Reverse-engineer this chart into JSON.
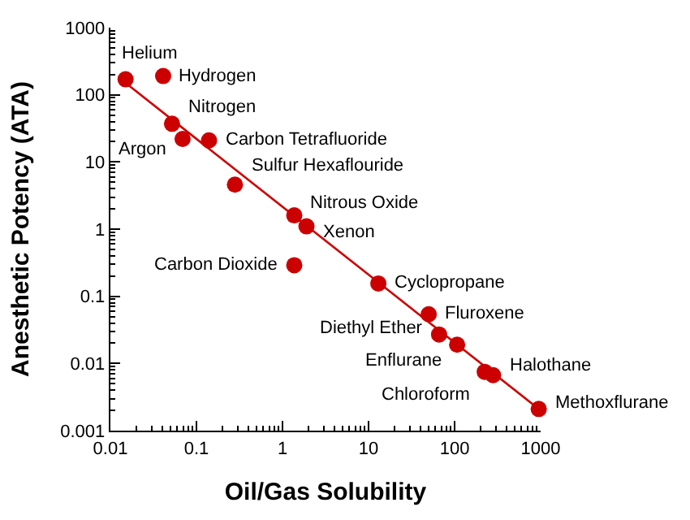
{
  "chart_data": {
    "type": "scatter",
    "xlabel": "Oil/Gas Solubility",
    "ylabel": "Anesthetic Potency (ATA)",
    "log": "xy",
    "marker": "circle",
    "xlim": [
      0.01,
      1000
    ],
    "xticks": [
      0.01,
      0.1,
      1,
      10,
      100,
      1000
    ],
    "ylim": [
      0.001,
      1000
    ],
    "yticks": [
      0.001,
      0.01,
      0.1,
      1,
      10,
      100,
      1000
    ],
    "series": [
      {
        "color": "#cc0000",
        "x": [
          0.015,
          0.041,
          0.052,
          0.069,
          0.14,
          0.28,
          1.37,
          1.9,
          1.37,
          13,
          50,
          66,
          107,
          224,
          280,
          950
        ],
        "values": [
          170,
          190,
          37,
          22,
          21,
          4.6,
          1.6,
          1.1,
          0.29,
          0.155,
          0.054,
          0.027,
          0.019,
          0.0075,
          0.0067,
          0.0021
        ]
      },
      {
        "type": "line",
        "color": "#cc0000",
        "line_style": "solid",
        "marker": "none",
        "x": [
          0.015,
          1000
        ],
        "values": [
          150,
          0.002
        ]
      }
    ],
    "annotations": [
      {
        "text": "Helium",
        "x": 0.015,
        "y": 170
      },
      {
        "text": "Hydrogen",
        "x": 0.041,
        "y": 190
      },
      {
        "text": "Nitrogen",
        "x": 0.052,
        "y": 37
      },
      {
        "text": "Argon",
        "x": 0.069,
        "y": 22
      },
      {
        "text": "Carbon Tetrafluoride",
        "x": 0.14,
        "y": 21
      },
      {
        "text": "Sulfur Hexaflouride",
        "x": 0.28,
        "y": 4.6
      },
      {
        "text": "Nitrous Oxide",
        "x": 1.37,
        "y": 1.6
      },
      {
        "text": "Xenon",
        "x": 1.9,
        "y": 1.1
      },
      {
        "text": "Carbon Dioxide",
        "x": 1.37,
        "y": 0.29
      },
      {
        "text": "Cyclopropane",
        "x": 13,
        "y": 0.155
      },
      {
        "text": "Fluroxene",
        "x": 50,
        "y": 0.054
      },
      {
        "text": "Diethyl Ether",
        "x": 66,
        "y": 0.027
      },
      {
        "text": "Enflurane",
        "x": 107,
        "y": 0.019
      },
      {
        "text": "Chloroform",
        "x": 224,
        "y": 0.0075
      },
      {
        "text": "Halothane",
        "x": 280,
        "y": 0.0067
      },
      {
        "text": "Methoxflurane",
        "x": 950,
        "y": 0.0021
      }
    ]
  }
}
